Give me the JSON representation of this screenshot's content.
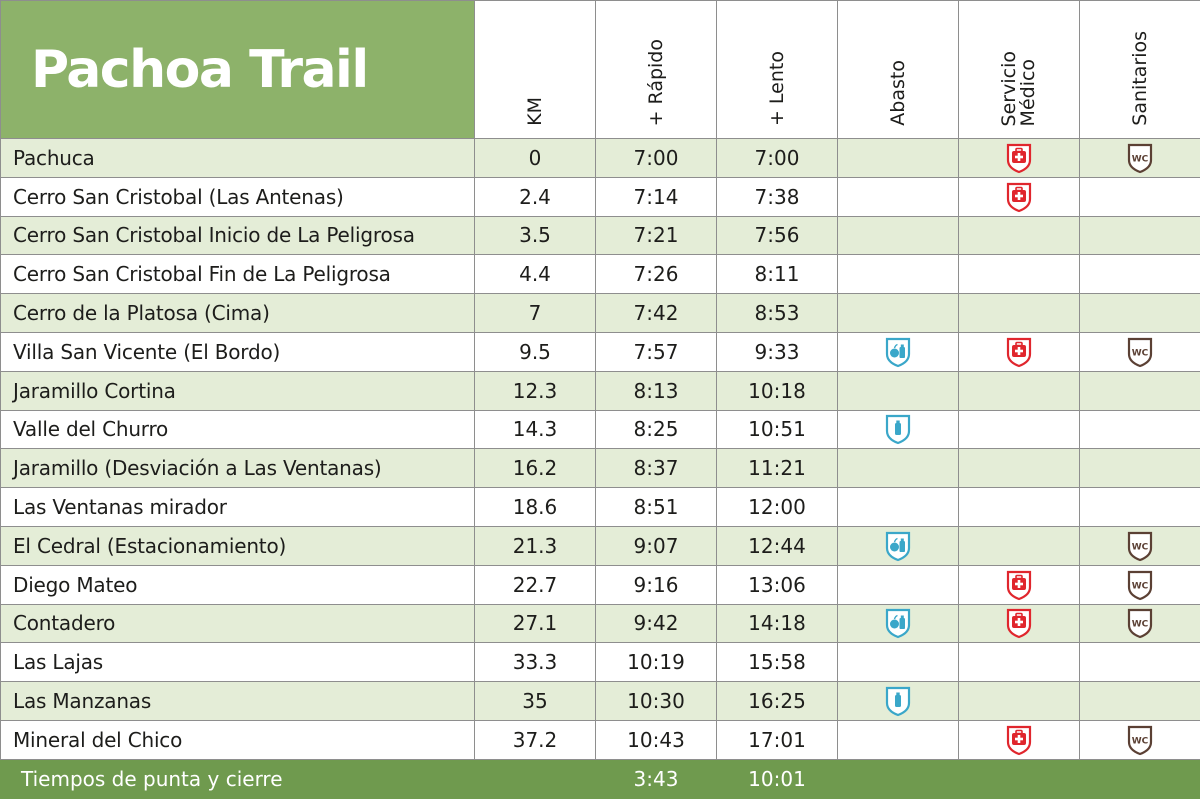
{
  "title": "Pachoa Trail",
  "headers": [
    "KM",
    "+ Rápido",
    "+ Lento",
    "Abasto",
    "Servicio\nMédico",
    "Sanitarios"
  ],
  "rows": [
    {
      "name": "Pachuca",
      "km": "0",
      "fast": "7:00",
      "slow": "7:00",
      "abasto": "",
      "medico": true,
      "sanitarios": true
    },
    {
      "name": "Cerro San Cristobal (Las Antenas)",
      "km": "2.4",
      "fast": "7:14",
      "slow": "7:38",
      "abasto": "",
      "medico": true,
      "sanitarios": false
    },
    {
      "name": "Cerro San Cristobal Inicio de La Peligrosa",
      "km": "3.5",
      "fast": "7:21",
      "slow": "7:56",
      "abasto": "",
      "medico": false,
      "sanitarios": false
    },
    {
      "name": "Cerro San Cristobal Fin de La Peligrosa",
      "km": "4.4",
      "fast": "7:26",
      "slow": "8:11",
      "abasto": "",
      "medico": false,
      "sanitarios": false
    },
    {
      "name": "Cerro de la Platosa (Cima)",
      "km": "7",
      "fast": "7:42",
      "slow": "8:53",
      "abasto": "",
      "medico": false,
      "sanitarios": false
    },
    {
      "name": "Villa San Vicente (El Bordo)",
      "km": "9.5",
      "fast": "7:57",
      "slow": "9:33",
      "abasto": "food-water",
      "medico": true,
      "sanitarios": true
    },
    {
      "name": "Jaramillo Cortina",
      "km": "12.3",
      "fast": "8:13",
      "slow": "10:18",
      "abasto": "",
      "medico": false,
      "sanitarios": false
    },
    {
      "name": "Valle del Churro",
      "km": "14.3",
      "fast": "8:25",
      "slow": "10:51",
      "abasto": "water",
      "medico": false,
      "sanitarios": false
    },
    {
      "name": "Jaramillo (Desviación a Las Ventanas)",
      "km": "16.2",
      "fast": "8:37",
      "slow": "11:21",
      "abasto": "",
      "medico": false,
      "sanitarios": false
    },
    {
      "name": "Las Ventanas mirador",
      "km": "18.6",
      "fast": "8:51",
      "slow": "12:00",
      "abasto": "",
      "medico": false,
      "sanitarios": false
    },
    {
      "name": "El Cedral (Estacionamiento)",
      "km": "21.3",
      "fast": "9:07",
      "slow": "12:44",
      "abasto": "food-water",
      "medico": false,
      "sanitarios": true
    },
    {
      "name": "Diego Mateo",
      "km": "22.7",
      "fast": "9:16",
      "slow": "13:06",
      "abasto": "",
      "medico": true,
      "sanitarios": true
    },
    {
      "name": "Contadero",
      "km": "27.1",
      "fast": "9:42",
      "slow": "14:18",
      "abasto": "food-water",
      "medico": true,
      "sanitarios": true
    },
    {
      "name": "Las Lajas",
      "km": "33.3",
      "fast": "10:19",
      "slow": "15:58",
      "abasto": "",
      "medico": false,
      "sanitarios": false
    },
    {
      "name": "Las Manzanas",
      "km": "35",
      "fast": "10:30",
      "slow": "16:25",
      "abasto": "water",
      "medico": false,
      "sanitarios": false
    },
    {
      "name": "Mineral del Chico",
      "km": "37.2",
      "fast": "10:43",
      "slow": "17:01",
      "abasto": "",
      "medico": true,
      "sanitarios": true
    }
  ],
  "footer": {
    "label": "Tiempos de punta y cierre",
    "fast": "3:43",
    "slow": "10:01"
  },
  "colors": {
    "header_green": "#8db26a",
    "row_green": "#e4edd7",
    "footer_green": "#6f9a4e",
    "water_blue": "#3aa7c9",
    "medical_red": "#e0262d",
    "wc_brown": "#5b4034"
  },
  "icons": {
    "abasto": "food-water-icon",
    "medico": "first-aid-icon",
    "sanitarios": "wc-icon"
  }
}
